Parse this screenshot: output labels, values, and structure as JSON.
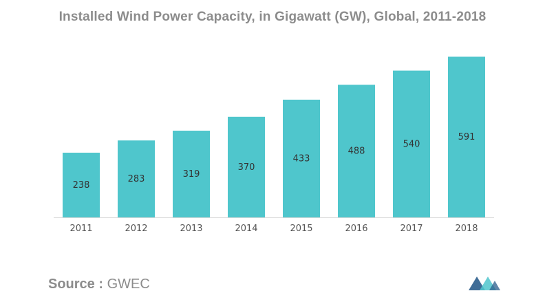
{
  "title": "Installed Wind Power Capacity, in Gigawatt (GW), Global, 2011-2018",
  "colors": {
    "bar": "#4fc6cc",
    "title": "#8c8c8c",
    "label": "#333333",
    "tick": "#555555",
    "axis": "#d9d9d9",
    "logo": "#2b5d8c"
  },
  "chart_data": {
    "type": "bar",
    "title": "Installed Wind Power Capacity, in Gigawatt (GW), Global, 2011-2018",
    "categories": [
      "2011",
      "2012",
      "2013",
      "2014",
      "2015",
      "2016",
      "2017",
      "2018"
    ],
    "values": [
      238,
      283,
      319,
      370,
      433,
      488,
      540,
      591
    ],
    "xlabel": "",
    "ylabel": "",
    "ylim": [
      0,
      620
    ],
    "grid": false,
    "legend": "none",
    "data_labels": true
  },
  "footer": {
    "source_label": "Source :",
    "source_value": "GWEC"
  },
  "logo": {
    "icon": "mordor-intelligence-logo"
  }
}
